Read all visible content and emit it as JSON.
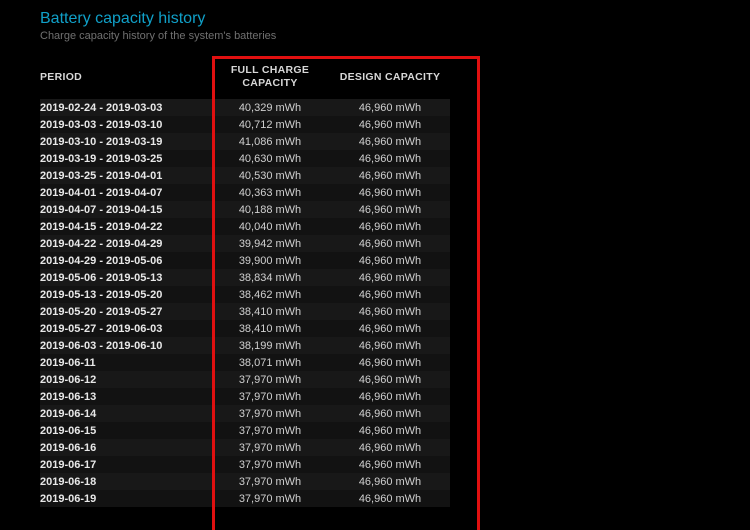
{
  "header": {
    "title": "Battery capacity history",
    "subtitle": "Charge capacity history of the system's batteries"
  },
  "columns": {
    "period": "PERIOD",
    "full_charge": "FULL CHARGE CAPACITY",
    "design": "DESIGN CAPACITY"
  },
  "highlight": {
    "border_color": "#e01010"
  },
  "colors": {
    "background": "#000000",
    "title": "#10a0c8",
    "subtitle": "#707070",
    "text": "#d0d0d0",
    "row_odd": "#181818",
    "row_even": "#121212"
  },
  "rows": [
    {
      "period": "2019-02-24 - 2019-03-03",
      "full_charge": "40,329 mWh",
      "design": "46,960 mWh"
    },
    {
      "period": "2019-03-03 - 2019-03-10",
      "full_charge": "40,712 mWh",
      "design": "46,960 mWh"
    },
    {
      "period": "2019-03-10 - 2019-03-19",
      "full_charge": "41,086 mWh",
      "design": "46,960 mWh"
    },
    {
      "period": "2019-03-19 - 2019-03-25",
      "full_charge": "40,630 mWh",
      "design": "46,960 mWh"
    },
    {
      "period": "2019-03-25 - 2019-04-01",
      "full_charge": "40,530 mWh",
      "design": "46,960 mWh"
    },
    {
      "period": "2019-04-01 - 2019-04-07",
      "full_charge": "40,363 mWh",
      "design": "46,960 mWh"
    },
    {
      "period": "2019-04-07 - 2019-04-15",
      "full_charge": "40,188 mWh",
      "design": "46,960 mWh"
    },
    {
      "period": "2019-04-15 - 2019-04-22",
      "full_charge": "40,040 mWh",
      "design": "46,960 mWh"
    },
    {
      "period": "2019-04-22 - 2019-04-29",
      "full_charge": "39,942 mWh",
      "design": "46,960 mWh"
    },
    {
      "period": "2019-04-29 - 2019-05-06",
      "full_charge": "39,900 mWh",
      "design": "46,960 mWh"
    },
    {
      "period": "2019-05-06 - 2019-05-13",
      "full_charge": "38,834 mWh",
      "design": "46,960 mWh"
    },
    {
      "period": "2019-05-13 - 2019-05-20",
      "full_charge": "38,462 mWh",
      "design": "46,960 mWh"
    },
    {
      "period": "2019-05-20 - 2019-05-27",
      "full_charge": "38,410 mWh",
      "design": "46,960 mWh"
    },
    {
      "period": "2019-05-27 - 2019-06-03",
      "full_charge": "38,410 mWh",
      "design": "46,960 mWh"
    },
    {
      "period": "2019-06-03 - 2019-06-10",
      "full_charge": "38,199 mWh",
      "design": "46,960 mWh"
    },
    {
      "period": "2019-06-11",
      "full_charge": "38,071 mWh",
      "design": "46,960 mWh"
    },
    {
      "period": "2019-06-12",
      "full_charge": "37,970 mWh",
      "design": "46,960 mWh"
    },
    {
      "period": "2019-06-13",
      "full_charge": "37,970 mWh",
      "design": "46,960 mWh"
    },
    {
      "period": "2019-06-14",
      "full_charge": "37,970 mWh",
      "design": "46,960 mWh"
    },
    {
      "period": "2019-06-15",
      "full_charge": "37,970 mWh",
      "design": "46,960 mWh"
    },
    {
      "period": "2019-06-16",
      "full_charge": "37,970 mWh",
      "design": "46,960 mWh"
    },
    {
      "period": "2019-06-17",
      "full_charge": "37,970 mWh",
      "design": "46,960 mWh"
    },
    {
      "period": "2019-06-18",
      "full_charge": "37,970 mWh",
      "design": "46,960 mWh"
    },
    {
      "period": "2019-06-19",
      "full_charge": "37,970 mWh",
      "design": "46,960 mWh"
    }
  ]
}
